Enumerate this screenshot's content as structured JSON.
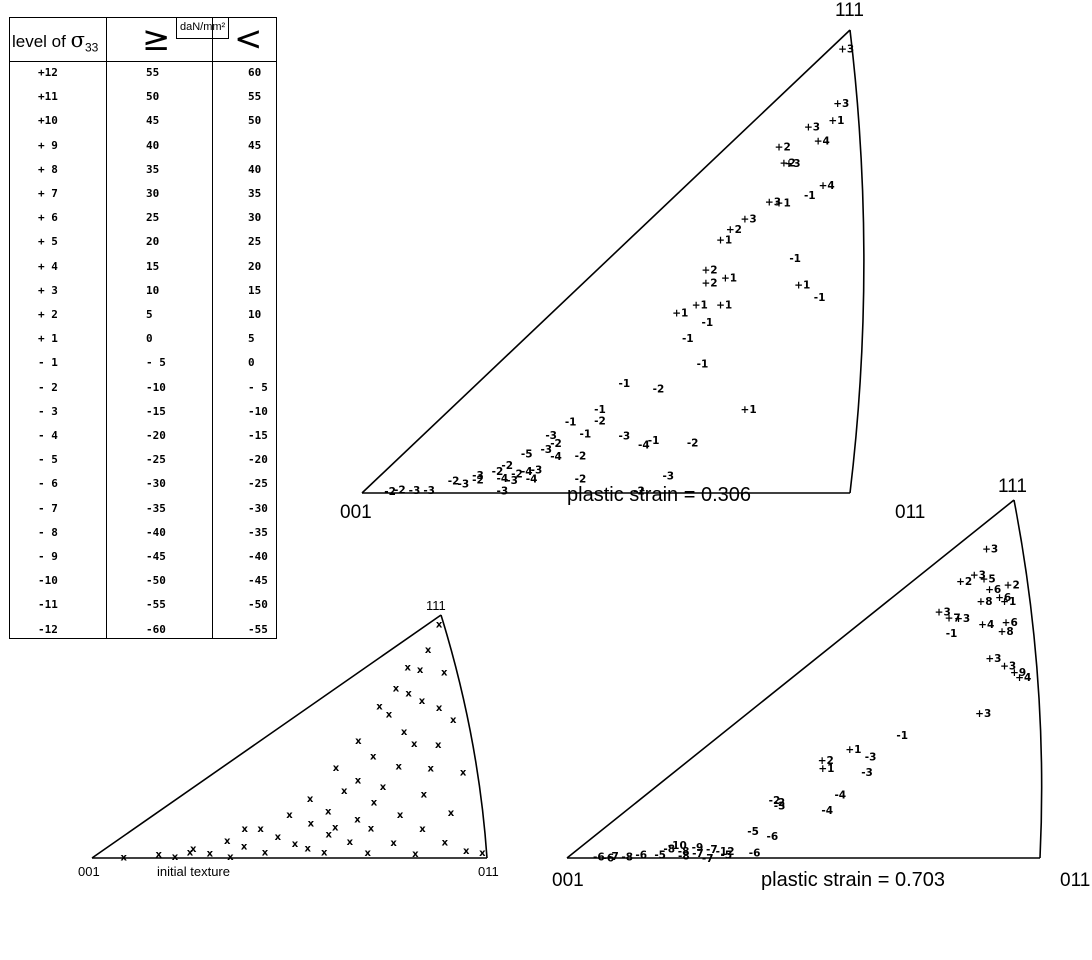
{
  "legend": {
    "header_level": "level of ",
    "header_sigma": "σ",
    "header_sub": "33",
    "header_ge": "≥",
    "header_unit": "daN/mm²",
    "header_lt": "<",
    "rows": [
      [
        "+12",
        "55",
        "60"
      ],
      [
        "+11",
        "50",
        "55"
      ],
      [
        "+10",
        "45",
        "50"
      ],
      [
        "+ 9",
        "40",
        "45"
      ],
      [
        "+ 8",
        "35",
        "40"
      ],
      [
        "+ 7",
        "30",
        "35"
      ],
      [
        "+ 6",
        "25",
        "30"
      ],
      [
        "+ 5",
        "20",
        "25"
      ],
      [
        "+ 4",
        "15",
        "20"
      ],
      [
        "+ 3",
        "10",
        "15"
      ],
      [
        "+ 2",
        "5",
        "10"
      ],
      [
        "+ 1",
        "0",
        "5"
      ],
      [
        "- 1",
        "- 5",
        "0"
      ],
      [
        "- 2",
        "-10",
        "- 5"
      ],
      [
        "- 3",
        "-15",
        "-10"
      ],
      [
        "- 4",
        "-20",
        "-15"
      ],
      [
        "- 5",
        "-25",
        "-20"
      ],
      [
        "- 6",
        "-30",
        "-25"
      ],
      [
        "- 7",
        "-35",
        "-30"
      ],
      [
        "- 8",
        "-40",
        "-35"
      ],
      [
        "- 9",
        "-45",
        "-40"
      ],
      [
        "-10",
        "-50",
        "-45"
      ],
      [
        "-11",
        "-55",
        "-50"
      ],
      [
        "-12",
        "-60",
        "-55"
      ]
    ]
  },
  "diagrams": [
    {
      "id": "strain-0306",
      "corner_001": "001",
      "corner_011": "011",
      "corner_111": "111",
      "caption": "plastic strain = 0.306",
      "points": [
        "+3",
        "+2",
        "+3",
        "+3",
        "+2",
        "+3",
        "+4",
        "+1",
        "+3",
        "+2",
        "+1",
        "+2",
        "+3",
        "+1",
        "-1",
        "+4",
        "+2",
        "+1",
        "+1",
        "+1",
        "-1",
        "+1",
        "-1",
        "-1",
        "-1",
        "+1",
        "-1",
        "-1",
        "-2",
        "-1",
        "-1",
        "-3",
        "-2",
        "-2",
        "-1",
        "-5",
        "-3",
        "-3",
        "-2",
        "-4",
        "-2",
        "-4",
        "-1",
        "-2",
        "+1",
        "-3",
        "-2",
        "-3",
        "-2",
        "-4",
        "-2",
        "-3",
        "-2",
        "-4",
        "-4",
        "-3",
        "-2",
        "-3",
        "-3",
        "-2",
        "-2",
        "-3",
        "-3",
        "-2"
      ]
    },
    {
      "id": "initial",
      "corner_001": "001",
      "corner_011": "011",
      "corner_111": "111",
      "caption": "initial texture",
      "marker": "x"
    },
    {
      "id": "strain-0703",
      "corner_001": "001",
      "corner_011": "011",
      "corner_111": "111",
      "caption": "plastic strain = 0.703",
      "points": [
        "+3",
        "+2",
        "+3",
        "+5",
        "+6",
        "+8",
        "+6",
        "+7",
        "+3",
        "+2",
        "+1",
        "+3",
        "-1",
        "+4",
        "+6",
        "+8",
        "+3",
        "+3",
        "+2",
        "+1",
        "-1",
        "+9",
        "+4",
        "+3",
        "+1",
        "-3",
        "-3",
        "-2",
        "-2",
        "-4",
        "-3",
        "-4",
        "-5",
        "-6",
        "-10",
        "-8",
        "-9",
        "-7",
        "-8",
        "-12",
        "-6",
        "-5",
        "-7",
        "-6",
        "-8",
        "-7",
        "-6",
        "-8",
        "-6",
        "-5",
        "-7"
      ]
    }
  ]
}
